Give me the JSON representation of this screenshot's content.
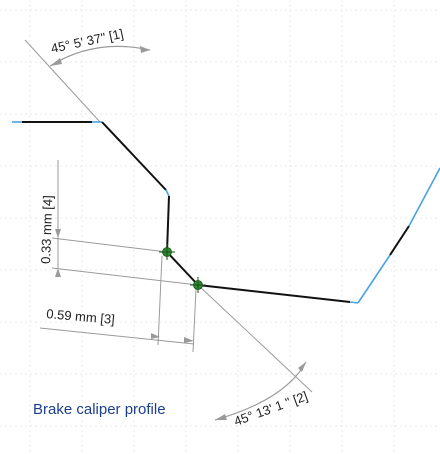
{
  "dimensions": {
    "angle_top": "45° 5' 37\" [1]",
    "angle_bottom": "45° 13' 1 \" [2]",
    "length_horizontal": "0.59 mm [3]",
    "length_vertical": "0.33 mm [4]"
  },
  "caption": "Brake caliper profile",
  "colors": {
    "line_selected": "#111111",
    "line_construction": "#4aa3df",
    "dimension_line": "#9a9a9a",
    "point_fill": "#2e8b2e",
    "caption_text": "#1c3f8c"
  }
}
